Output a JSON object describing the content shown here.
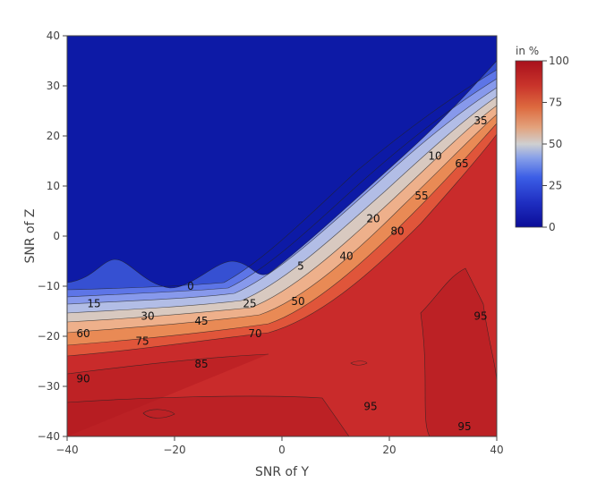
{
  "chart_data": {
    "type": "contour",
    "title": "",
    "xlabel": "SNR of Y",
    "ylabel": "SNR of Z",
    "xlim": [
      -40,
      40
    ],
    "ylim": [
      -40,
      40
    ],
    "x_ticks": [
      "−40",
      "−20",
      "0",
      "20",
      "40"
    ],
    "x_tick_values": [
      -40,
      -20,
      0,
      20,
      40
    ],
    "y_ticks": [
      "40",
      "30",
      "20",
      "10",
      "0",
      "−10",
      "−20",
      "−30",
      "−40"
    ],
    "y_tick_values": [
      40,
      30,
      20,
      10,
      0,
      -10,
      -20,
      -30,
      -40
    ],
    "colorbar": {
      "title": "in %",
      "range": [
        0,
        100
      ],
      "tick_labels": [
        "100",
        "75",
        "50",
        "25",
        "0"
      ],
      "tick_values": [
        100,
        75,
        50,
        25,
        0
      ],
      "colorscale": "blue-white-red (RdBu reversed)"
    },
    "contour_levels": [
      0,
      5,
      10,
      15,
      20,
      25,
      30,
      35,
      40,
      45,
      50,
      55,
      60,
      65,
      70,
      75,
      80,
      85,
      90,
      95
    ],
    "contour_labels": [
      {
        "text": "0",
        "x": -17,
        "y": -10
      },
      {
        "text": "5",
        "x": 3.5,
        "y": -6
      },
      {
        "text": "10",
        "x": 28.5,
        "y": 16
      },
      {
        "text": "15",
        "x": -35,
        "y": -13.5
      },
      {
        "text": "20",
        "x": 17,
        "y": 3.5
      },
      {
        "text": "25",
        "x": -6,
        "y": -13.5
      },
      {
        "text": "30",
        "x": -25,
        "y": -16
      },
      {
        "text": "35",
        "x": 37,
        "y": 23
      },
      {
        "text": "40",
        "x": 12,
        "y": -4
      },
      {
        "text": "45",
        "x": -15,
        "y": -17
      },
      {
        "text": "50",
        "x": 3,
        "y": -13
      },
      {
        "text": "55",
        "x": 26,
        "y": 8
      },
      {
        "text": "60",
        "x": -37,
        "y": -19.5
      },
      {
        "text": "65",
        "x": 33.5,
        "y": 14.5
      },
      {
        "text": "70",
        "x": -5,
        "y": -19.5
      },
      {
        "text": "75",
        "x": -26,
        "y": -21
      },
      {
        "text": "80",
        "x": 21.5,
        "y": 1
      },
      {
        "text": "85",
        "x": -15,
        "y": -25.5
      },
      {
        "text": "90",
        "x": -37,
        "y": -28.5
      },
      {
        "text": "95",
        "x": 16.5,
        "y": -34
      },
      {
        "text": "95",
        "x": 37,
        "y": -16
      },
      {
        "text": "95",
        "x": 34,
        "y": -38
      }
    ]
  }
}
